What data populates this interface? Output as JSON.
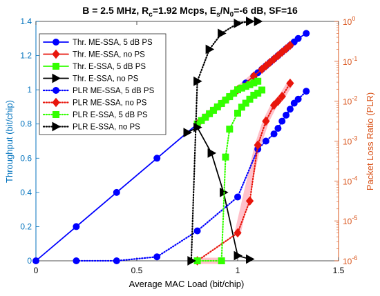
{
  "chart_data": {
    "type": "line",
    "title_parts": [
      "B = 2.5 MHz, R",
      "c",
      "=1.92 Mcps, E",
      "s",
      "/N",
      "0",
      "=-6 dB, SF=16"
    ],
    "xlabel": "Average MAC Load (bit/chip)",
    "ylabel_left": "Throughput (bit/chip)",
    "ylabel_right": "Packet Loss Ratio (PLR)",
    "xlim": [
      0,
      1.5
    ],
    "ylim_left": [
      0,
      1.4
    ],
    "ylim_right_log10": [
      -6,
      0
    ],
    "x_ticks": [
      "0",
      "0.5",
      "1",
      "1.5"
    ],
    "y_left_ticks": [
      "0",
      "0.2",
      "0.4",
      "0.6",
      "0.8",
      "1",
      "1.2",
      "1.4"
    ],
    "y_right_ticks": [
      {
        "base": "10",
        "exp": "-6"
      },
      {
        "base": "10",
        "exp": "-5"
      },
      {
        "base": "10",
        "exp": "-4"
      },
      {
        "base": "10",
        "exp": "-3"
      },
      {
        "base": "10",
        "exp": "-2"
      },
      {
        "base": "10",
        "exp": "-1"
      },
      {
        "base": "10",
        "exp": "0"
      }
    ],
    "colors": {
      "left_axis": "#0072BD",
      "right_axis": "#D95319",
      "blue": "#0000FF",
      "red": "#E8160C",
      "green": "#33FF00",
      "black": "#000000",
      "highlight": "#FFB6C1"
    },
    "grid": false,
    "legend_position": "top-left",
    "series": [
      {
        "name": "Thr. ME-SSA, 5 dB PS",
        "axis": "left",
        "color": "blue",
        "dash": "solid",
        "marker": "circle",
        "x": [
          0,
          0.2,
          0.4,
          0.6,
          0.8,
          1.0,
          1.04,
          1.08,
          1.1,
          1.12,
          1.14,
          1.16,
          1.18,
          1.2,
          1.22,
          1.24,
          1.26,
          1.28,
          1.3,
          1.34
        ],
        "y": [
          0,
          0.2,
          0.4,
          0.6,
          0.8,
          1.0,
          1.04,
          1.08,
          1.1,
          1.12,
          1.14,
          1.16,
          1.18,
          1.2,
          1.22,
          1.24,
          1.26,
          1.28,
          1.3,
          1.33
        ]
      },
      {
        "name": "Thr. ME-SSA, no PS",
        "axis": "left",
        "color": "red",
        "dash": "solid",
        "marker": "diamond",
        "x": [
          0.8,
          1.0,
          1.08,
          1.12,
          1.14,
          1.16,
          1.18,
          1.2,
          1.22,
          1.24,
          1.26
        ],
        "y": [
          0.8,
          1.0,
          1.08,
          1.12,
          1.14,
          1.16,
          1.18,
          1.2,
          1.22,
          1.24,
          1.26
        ]
      },
      {
        "name": "Thr. E-SSA, 5 dB PS",
        "axis": "left",
        "color": "green",
        "dash": "solid",
        "marker": "square",
        "x": [
          0.8,
          0.82,
          0.84,
          0.86,
          0.88,
          0.9,
          0.92,
          0.94,
          0.96,
          0.98,
          1.0,
          1.02,
          1.04,
          1.06,
          1.08,
          1.1
        ],
        "y": [
          0.8,
          0.82,
          0.84,
          0.86,
          0.88,
          0.9,
          0.92,
          0.94,
          0.96,
          0.98,
          1.0,
          1.01,
          1.02,
          1.03,
          1.04,
          1.05
        ]
      },
      {
        "name": "Thr. E-SSA, no PS",
        "axis": "left",
        "color": "black",
        "dash": "solid",
        "marker": "triangle-right",
        "x": [
          0.75,
          0.8,
          0.87,
          0.93,
          1.0,
          1.06
        ],
        "y": [
          0.75,
          0.78,
          0.63,
          0.4,
          0.03,
          0.01
        ]
      },
      {
        "name": "PLR ME-SSA, 5 dB PS",
        "axis": "right",
        "color": "blue",
        "dash": "dotted",
        "marker": "circle",
        "x": [
          0.2,
          0.4,
          0.6,
          0.8,
          1.0,
          1.1,
          1.14,
          1.18,
          1.2,
          1.22,
          1.24,
          1.26,
          1.28,
          1.3,
          1.34
        ],
        "y_log10": [
          -6.0,
          -6.0,
          -5.9,
          -5.25,
          -4.4,
          -3.2,
          -3.0,
          -2.82,
          -2.68,
          -2.5,
          -2.35,
          -2.2,
          -2.05,
          -1.95,
          -1.75
        ]
      },
      {
        "name": "PLR ME-SSA, no PS",
        "axis": "right",
        "color": "red",
        "dash": "dotted",
        "marker": "diamond",
        "x": [
          0.8,
          1.0,
          1.06,
          1.1,
          1.14,
          1.18,
          1.2,
          1.22,
          1.26
        ],
        "y_log10": [
          -6.0,
          -5.3,
          -4.5,
          -3.1,
          -2.5,
          -2.1,
          -2.0,
          -1.88,
          -1.55
        ]
      },
      {
        "name": "PLR E-SSA, 5 dB PS",
        "axis": "right",
        "color": "green",
        "dash": "dotted",
        "marker": "square",
        "x": [
          0.8,
          0.92,
          0.94,
          0.96,
          1.0,
          1.02,
          1.04,
          1.06,
          1.08,
          1.1,
          1.12
        ],
        "y_log10": [
          -6.0,
          -6.0,
          -3.4,
          -2.7,
          -2.3,
          -2.15,
          -2.05,
          -1.95,
          -1.85,
          -1.8,
          -1.72
        ]
      },
      {
        "name": "PLR E-SSA, no PS",
        "axis": "right",
        "color": "black",
        "dash": "dotted",
        "marker": "triangle-right",
        "x": [
          0.77,
          0.8,
          0.86,
          0.92,
          1.0,
          1.06,
          1.1
        ],
        "y_log10": [
          -6.0,
          -1.5,
          -0.7,
          -0.3,
          -0.05,
          0,
          0
        ]
      }
    ],
    "highlights": [
      {
        "axis": "left",
        "from_x": 0.8,
        "to_x": 1.1
      },
      {
        "axis": "left",
        "from_x": 1.12,
        "to_x": 1.26
      },
      {
        "axis": "right",
        "x": [
          1.0,
          1.1,
          1.14,
          1.18,
          1.22,
          1.26
        ],
        "y_log10": [
          -5.3,
          -3.1,
          -2.5,
          -2.1,
          -1.88,
          -1.55
        ]
      },
      {
        "axis": "right",
        "x": [
          0.8,
          0.92
        ],
        "y_log10": [
          -6.0,
          -6.0
        ]
      }
    ]
  }
}
